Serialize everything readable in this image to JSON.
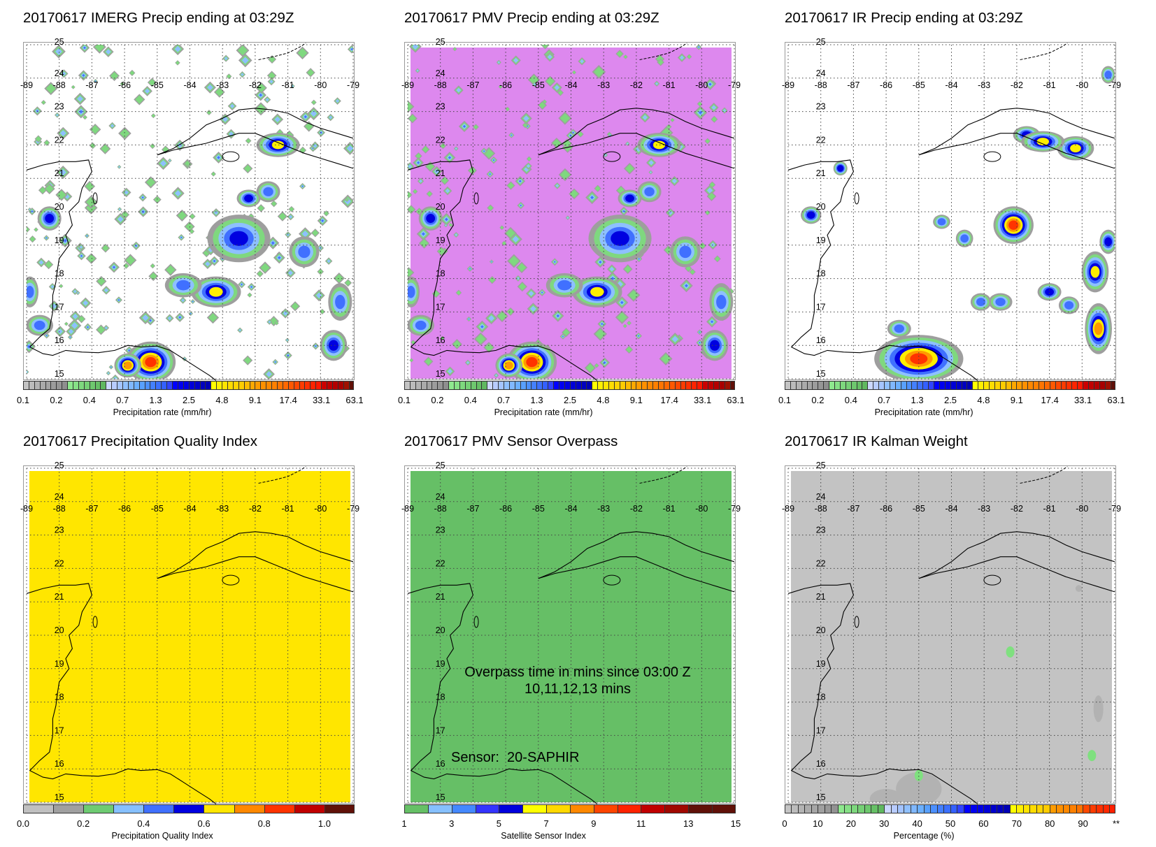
{
  "map_grid": {
    "lon_labels": [
      "-89",
      "-88",
      "-87",
      "-86",
      "-85",
      "-84",
      "-83",
      "-82",
      "-81",
      "-80",
      "-79"
    ],
    "lat_labels": [
      "25",
      "24",
      "23",
      "22",
      "21",
      "20",
      "19",
      "18",
      "17",
      "16",
      "15"
    ]
  },
  "panels": [
    {
      "title": "20170617 IMERG Precip ending at 03:29Z",
      "background": "#ffffff",
      "field": "imerg",
      "colorbar": {
        "label": "Precipitation rate (mm/hr)",
        "ticks": [
          "0.1",
          "0.2",
          "0.4",
          "0.7",
          "1.3",
          "2.5",
          "4.8",
          "9.1",
          "17.4",
          "33.1",
          "63.1"
        ],
        "scheme": "precip"
      }
    },
    {
      "title": "20170617 PMV Precip ending at 03:29Z",
      "background": "#dd88ee",
      "field": "pmv",
      "colorbar": {
        "label": "Precipitation rate (mm/hr)",
        "ticks": [
          "0.1",
          "0.2",
          "0.4",
          "0.7",
          "1.3",
          "2.5",
          "4.8",
          "9.1",
          "17.4",
          "33.1",
          "63.1"
        ],
        "scheme": "precip"
      }
    },
    {
      "title": "20170617 IR Precip ending at 03:29Z",
      "background": "#ffffff",
      "field": "ir",
      "colorbar": {
        "label": "Precipitation rate (mm/hr)",
        "ticks": [
          "0.1",
          "0.2",
          "0.4",
          "0.7",
          "1.3",
          "2.5",
          "4.8",
          "9.1",
          "17.4",
          "33.1",
          "63.1"
        ],
        "scheme": "precip"
      }
    },
    {
      "title": "20170617 Precipitation Quality Index",
      "background": "#ffe600",
      "field": "none",
      "colorbar": {
        "label": "Precipitation Quality Index",
        "ticks": [
          "0.0",
          "0.2",
          "0.4",
          "0.6",
          "0.8",
          "1.0"
        ],
        "scheme": "pqi"
      }
    },
    {
      "title": "20170617 PMV Sensor Overpass",
      "background": "#66bf66",
      "field": "none",
      "overlay": {
        "line1": "Overpass time in mins since 03:00 Z",
        "line2": "10,11,12,13 mins",
        "sensor": "Sensor:  20-SAPHIR"
      },
      "colorbar": {
        "label": "Satellite Sensor Index",
        "ticks": [
          "1",
          "3",
          "5",
          "7",
          "9",
          "11",
          "13",
          "15"
        ],
        "scheme": "sensor"
      }
    },
    {
      "title": "20170617 IR Kalman Weight",
      "background": "#c3c3c3",
      "field": "kalman",
      "colorbar": {
        "label": "Percentage (%)",
        "ticks": [
          "0",
          "10",
          "20",
          "30",
          "40",
          "50",
          "60",
          "70",
          "80",
          "90",
          "**"
        ],
        "scheme": "kalman"
      }
    }
  ],
  "color_schemes": {
    "precip": [
      "#c4c4c4",
      "#bbbbbb",
      "#b3b3b3",
      "#aaaaaa",
      "#a4a4a4",
      "#9c9c9c",
      "#969696",
      "#8e8e8e",
      "#8ee88e",
      "#86e086",
      "#7ed87e",
      "#76d076",
      "#6ec86e",
      "#66c066",
      "#60b860",
      "#ccd8ff",
      "#b8ccff",
      "#a4c4ff",
      "#90c0ff",
      "#80b8ff",
      "#6cb0ff",
      "#58a0ff",
      "#4c90ff",
      "#4480ff",
      "#3c70ff",
      "#3460ff",
      "#3044ff",
      "#0000ff",
      "#0000f0",
      "#0000e4",
      "#0000d8",
      "#0000cc",
      "#0000c0",
      "#0000b4",
      "#ffff00",
      "#fff000",
      "#ffe400",
      "#ffdc00",
      "#ffd400",
      "#ffcc00",
      "#ffbc00",
      "#ffa800",
      "#ff9c00",
      "#ff9000",
      "#ff8800",
      "#ff8000",
      "#ff7400",
      "#ff6800",
      "#ff5800",
      "#ff4800",
      "#ff3c00",
      "#ff3000",
      "#ff2400",
      "#ff1800",
      "#cc0000",
      "#c00000",
      "#b40000",
      "#a80000",
      "#a01000",
      "#601008"
    ],
    "pqi": [
      "#c0c0c0",
      "#a0a0a0",
      "#6ecb72",
      "#86c0ff",
      "#4070ff",
      "#0000e0",
      "#ffe600",
      "#ff8800",
      "#ff3300",
      "#c00000",
      "#601008"
    ],
    "sensor": [
      "#66c066",
      "#86c0ff",
      "#4488ff",
      "#3333ff",
      "#0000dd",
      "#ffff00",
      "#ffd800",
      "#ff8800",
      "#ff4400",
      "#ff2200",
      "#c00000",
      "#a00800",
      "#601008",
      "#601008"
    ],
    "kalman": [
      "#c4c4c4",
      "#bcbcbc",
      "#b4b4b4",
      "#acacac",
      "#a6a6a6",
      "#a0a0a0",
      "#989898",
      "#929292",
      "#8ee88e",
      "#86e086",
      "#7ed87e",
      "#76d076",
      "#6ec86e",
      "#66c066",
      "#60b860",
      "#ccd8ff",
      "#b8ccff",
      "#a4c4ff",
      "#90c0ff",
      "#80b8ff",
      "#6cb0ff",
      "#58a0ff",
      "#4c90ff",
      "#4480ff",
      "#3c70ff",
      "#3460ff",
      "#3044ff",
      "#0000ff",
      "#0000f0",
      "#0000e4",
      "#0000d8",
      "#0000cc",
      "#0000c0",
      "#0000b4",
      "#ffff00",
      "#fff000",
      "#ffe400",
      "#ffdc00",
      "#ffd400",
      "#ffcc00",
      "#ff9c00",
      "#ff9000",
      "#ff8800",
      "#ff8000",
      "#ff7400",
      "#ff4800",
      "#ff3c00",
      "#ff3000",
      "#ff2800",
      "#ff2000"
    ]
  }
}
